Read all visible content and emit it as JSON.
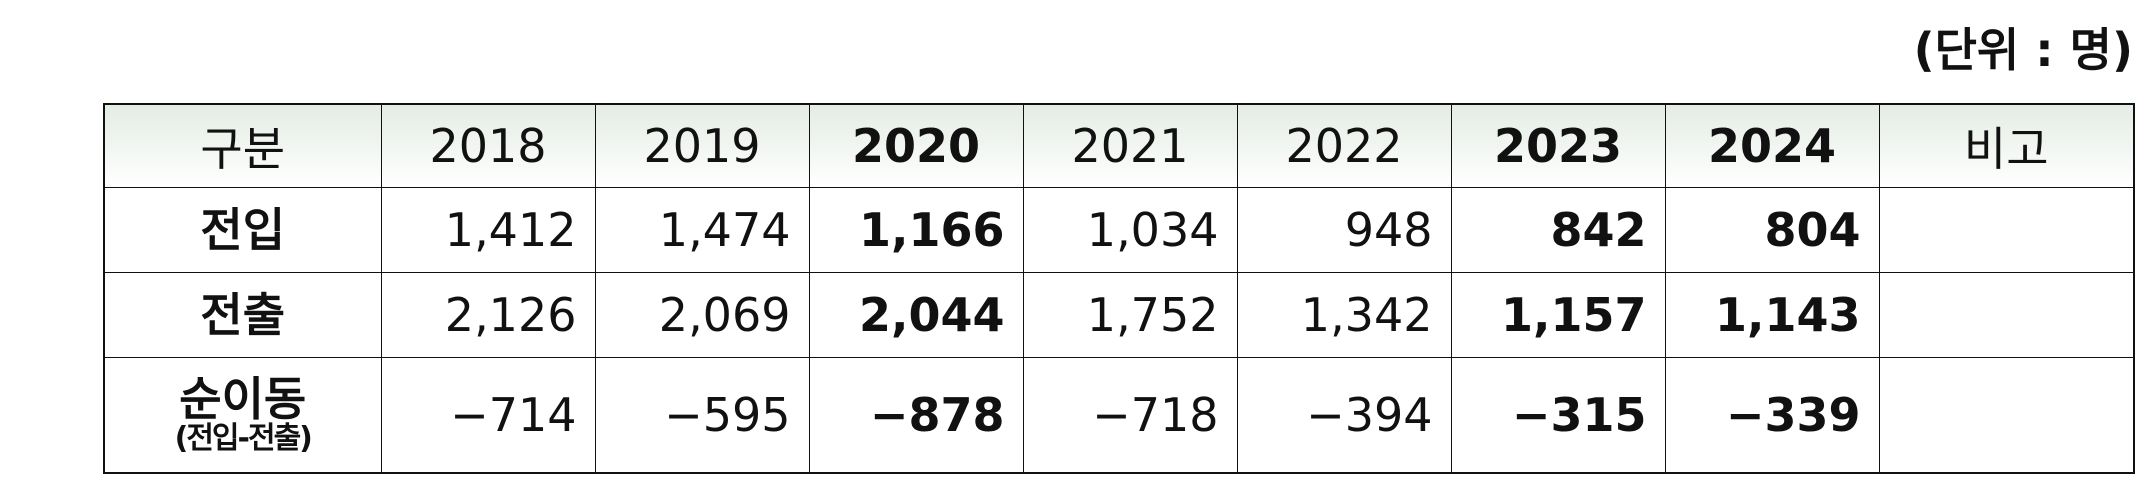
{
  "unit": "(단위 : 명)",
  "table": {
    "header": [
      "구분",
      "2018",
      "2019",
      "2020",
      "2021",
      "2022",
      "2023",
      "2024",
      "비고"
    ],
    "bold_columns": [
      3,
      6,
      7
    ],
    "rows": [
      {
        "label": "전입",
        "values": [
          "1,412",
          "1,474",
          "1,166",
          "1,034",
          "948",
          "842",
          "804"
        ]
      },
      {
        "label": "전출",
        "values": [
          "2,126",
          "2,069",
          "2,044",
          "1,752",
          "1,342",
          "1,157",
          "1,143"
        ]
      },
      {
        "label": "순이동",
        "sublabel": "(전입-전출)",
        "values": [
          "−714",
          "−595",
          "−878",
          "−718",
          "−394",
          "−315",
          "−339"
        ]
      }
    ]
  }
}
